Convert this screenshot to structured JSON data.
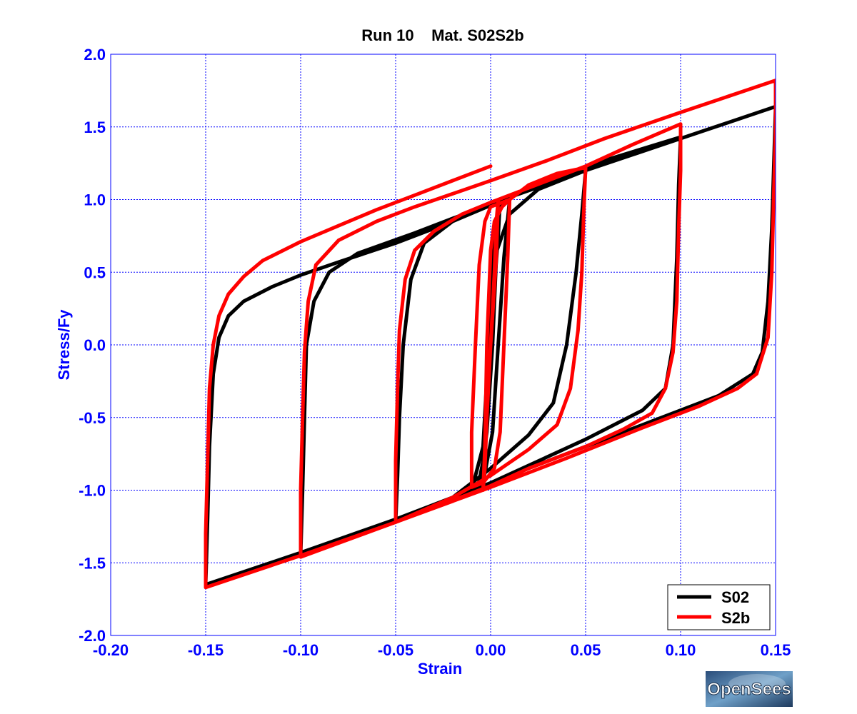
{
  "chart_data": {
    "type": "line",
    "title": "Run 10    Mat. S02S2b",
    "xlabel": "Strain",
    "ylabel": "Stress/Fy",
    "xlim": [
      -0.2,
      0.15
    ],
    "ylim": [
      -2.0,
      2.0
    ],
    "xticks": [
      -0.2,
      -0.15,
      -0.1,
      -0.05,
      0.0,
      0.05,
      0.1,
      0.15
    ],
    "xtick_labels": [
      "-0.20",
      "-0.15",
      "-0.10",
      "-0.05",
      "0.00",
      "0.05",
      "0.10",
      "0.15"
    ],
    "yticks": [
      2.0,
      1.5,
      1.0,
      0.5,
      0.0,
      -0.5,
      -1.0,
      -1.5,
      -2.0
    ],
    "ytick_labels": [
      "2.0",
      "1.5",
      "1.0",
      "0.5",
      "0.0",
      "-0.5",
      "-1.0",
      "-1.5",
      "-2.0"
    ],
    "grid": true,
    "legend_position": "bottom-right",
    "series": [
      {
        "name": "S02",
        "color": "#000000",
        "points": [
          [
            0.0,
            0.0
          ],
          [
            0.002,
            0.4
          ],
          [
            0.004,
            0.75
          ],
          [
            0.005,
            1.0
          ],
          [
            0.003,
            0.6
          ],
          [
            0.001,
            0.0
          ],
          [
            -0.002,
            -0.6
          ],
          [
            -0.005,
            -0.9
          ],
          [
            -0.007,
            -1.0
          ],
          [
            -0.004,
            -0.8
          ],
          [
            -0.002,
            -0.3
          ],
          [
            0.0,
            0.4
          ],
          [
            0.002,
            0.8
          ],
          [
            0.006,
            0.97
          ],
          [
            0.01,
            1.0
          ],
          [
            0.007,
            0.6
          ],
          [
            0.004,
            0.0
          ],
          [
            0.001,
            -0.6
          ],
          [
            -0.004,
            -0.95
          ],
          [
            -0.01,
            -1.0
          ],
          [
            -0.004,
            -0.7
          ],
          [
            -0.001,
            0.0
          ],
          [
            0.002,
            0.6
          ],
          [
            0.01,
            0.9
          ],
          [
            0.025,
            1.07
          ],
          [
            0.05,
            1.2
          ],
          [
            0.048,
            0.9
          ],
          [
            0.045,
            0.5
          ],
          [
            0.04,
            0.0
          ],
          [
            0.033,
            -0.4
          ],
          [
            0.02,
            -0.62
          ],
          [
            0.0,
            -0.85
          ],
          [
            -0.02,
            -1.05
          ],
          [
            -0.05,
            -1.22
          ],
          [
            -0.049,
            -0.9
          ],
          [
            -0.048,
            -0.5
          ],
          [
            -0.046,
            0.0
          ],
          [
            -0.042,
            0.45
          ],
          [
            -0.035,
            0.7
          ],
          [
            -0.02,
            0.85
          ],
          [
            0.0,
            0.97
          ],
          [
            0.03,
            1.13
          ],
          [
            0.06,
            1.27
          ],
          [
            0.1,
            1.43
          ],
          [
            0.099,
            1.1
          ],
          [
            0.098,
            0.6
          ],
          [
            0.096,
            0.0
          ],
          [
            0.092,
            -0.3
          ],
          [
            0.08,
            -0.45
          ],
          [
            0.05,
            -0.65
          ],
          [
            0.0,
            -0.95
          ],
          [
            -0.05,
            -1.22
          ],
          [
            -0.1,
            -1.45
          ],
          [
            -0.099,
            -1.0
          ],
          [
            -0.098,
            -0.5
          ],
          [
            -0.097,
            0.0
          ],
          [
            -0.093,
            0.3
          ],
          [
            -0.085,
            0.5
          ],
          [
            -0.07,
            0.63
          ],
          [
            -0.04,
            0.77
          ],
          [
            0.0,
            0.97
          ],
          [
            0.05,
            1.2
          ],
          [
            0.1,
            1.42
          ],
          [
            0.15,
            1.64
          ],
          [
            0.149,
            1.2
          ],
          [
            0.148,
            0.8
          ],
          [
            0.146,
            0.3
          ],
          [
            0.143,
            -0.05
          ],
          [
            0.138,
            -0.2
          ],
          [
            0.12,
            -0.35
          ],
          [
            0.08,
            -0.55
          ],
          [
            0.04,
            -0.75
          ],
          [
            0.0,
            -0.95
          ],
          [
            -0.05,
            -1.2
          ],
          [
            -0.1,
            -1.43
          ],
          [
            -0.15,
            -1.65
          ],
          [
            -0.149,
            -1.2
          ],
          [
            -0.148,
            -0.7
          ],
          [
            -0.146,
            -0.2
          ],
          [
            -0.143,
            0.05
          ],
          [
            -0.138,
            0.2
          ],
          [
            -0.13,
            0.3
          ],
          [
            -0.115,
            0.4
          ],
          [
            -0.1,
            0.48
          ],
          [
            -0.08,
            0.57
          ],
          [
            -0.05,
            0.7
          ],
          [
            -0.02,
            0.85
          ],
          [
            0.0,
            0.96
          ],
          [
            0.005,
            1.0
          ]
        ]
      },
      {
        "name": "S2b",
        "color": "#ff0000",
        "points": [
          [
            0.0,
            0.0
          ],
          [
            0.002,
            0.5
          ],
          [
            0.003,
            0.85
          ],
          [
            0.004,
            1.0
          ],
          [
            0.003,
            0.6
          ],
          [
            0.0,
            0.0
          ],
          [
            -0.002,
            -0.5
          ],
          [
            -0.003,
            -0.85
          ],
          [
            -0.004,
            -1.0
          ],
          [
            -0.003,
            -0.7
          ],
          [
            -0.002,
            0.0
          ],
          [
            0.0,
            0.65
          ],
          [
            0.002,
            0.85
          ],
          [
            0.006,
            0.95
          ],
          [
            0.01,
            1.0
          ],
          [
            0.009,
            0.6
          ],
          [
            0.007,
            0.0
          ],
          [
            0.005,
            -0.6
          ],
          [
            0.002,
            -0.85
          ],
          [
            -0.004,
            -0.95
          ],
          [
            -0.01,
            -0.98
          ],
          [
            -0.01,
            -0.6
          ],
          [
            -0.008,
            0.0
          ],
          [
            -0.006,
            0.55
          ],
          [
            -0.003,
            0.85
          ],
          [
            0.0,
            0.95
          ],
          [
            0.01,
            1.0
          ],
          [
            0.02,
            1.1
          ],
          [
            0.035,
            1.18
          ],
          [
            0.05,
            1.22
          ],
          [
            0.049,
            0.9
          ],
          [
            0.048,
            0.5
          ],
          [
            0.046,
            0.1
          ],
          [
            0.042,
            -0.3
          ],
          [
            0.035,
            -0.55
          ],
          [
            0.02,
            -0.72
          ],
          [
            0.0,
            -0.9
          ],
          [
            -0.02,
            -1.05
          ],
          [
            -0.05,
            -1.22
          ],
          [
            -0.05,
            -0.8
          ],
          [
            -0.049,
            -0.3
          ],
          [
            -0.048,
            0.1
          ],
          [
            -0.045,
            0.45
          ],
          [
            -0.04,
            0.65
          ],
          [
            -0.03,
            0.78
          ],
          [
            -0.015,
            0.9
          ],
          [
            0.0,
            0.98
          ],
          [
            0.02,
            1.08
          ],
          [
            0.05,
            1.23
          ],
          [
            0.075,
            1.38
          ],
          [
            0.1,
            1.52
          ],
          [
            0.1,
            1.2
          ],
          [
            0.099,
            0.8
          ],
          [
            0.098,
            0.3
          ],
          [
            0.096,
            -0.05
          ],
          [
            0.092,
            -0.3
          ],
          [
            0.085,
            -0.47
          ],
          [
            0.07,
            -0.58
          ],
          [
            0.05,
            -0.7
          ],
          [
            0.02,
            -0.85
          ],
          [
            0.0,
            -0.97
          ],
          [
            -0.05,
            -1.22
          ],
          [
            -0.1,
            -1.46
          ],
          [
            -0.1,
            -1.0
          ],
          [
            -0.099,
            -0.5
          ],
          [
            -0.098,
            -0.05
          ],
          [
            -0.096,
            0.3
          ],
          [
            -0.092,
            0.55
          ],
          [
            -0.08,
            0.72
          ],
          [
            -0.06,
            0.85
          ],
          [
            -0.04,
            0.95
          ],
          [
            -0.02,
            1.04
          ],
          [
            0.0,
            1.13
          ],
          [
            0.03,
            1.27
          ],
          [
            0.06,
            1.42
          ],
          [
            0.1,
            1.6
          ],
          [
            0.15,
            1.82
          ],
          [
            0.15,
            1.5
          ],
          [
            0.149,
            1.0
          ],
          [
            0.148,
            0.5
          ],
          [
            0.146,
            0.05
          ],
          [
            0.14,
            -0.2
          ],
          [
            0.13,
            -0.3
          ],
          [
            0.11,
            -0.42
          ],
          [
            0.08,
            -0.57
          ],
          [
            0.04,
            -0.78
          ],
          [
            0.0,
            -0.98
          ],
          [
            -0.05,
            -1.22
          ],
          [
            -0.1,
            -1.45
          ],
          [
            -0.15,
            -1.67
          ],
          [
            -0.15,
            -1.3
          ],
          [
            -0.149,
            -0.8
          ],
          [
            -0.148,
            -0.3
          ],
          [
            -0.146,
            0.0
          ],
          [
            -0.143,
            0.2
          ],
          [
            -0.138,
            0.35
          ],
          [
            -0.13,
            0.47
          ],
          [
            -0.12,
            0.58
          ],
          [
            -0.1,
            0.71
          ],
          [
            -0.08,
            0.82
          ],
          [
            -0.06,
            0.93
          ],
          [
            -0.04,
            1.03
          ],
          [
            -0.02,
            1.13
          ],
          [
            0.0,
            1.23
          ]
        ]
      }
    ]
  },
  "logo": {
    "text": "OpenSees"
  }
}
